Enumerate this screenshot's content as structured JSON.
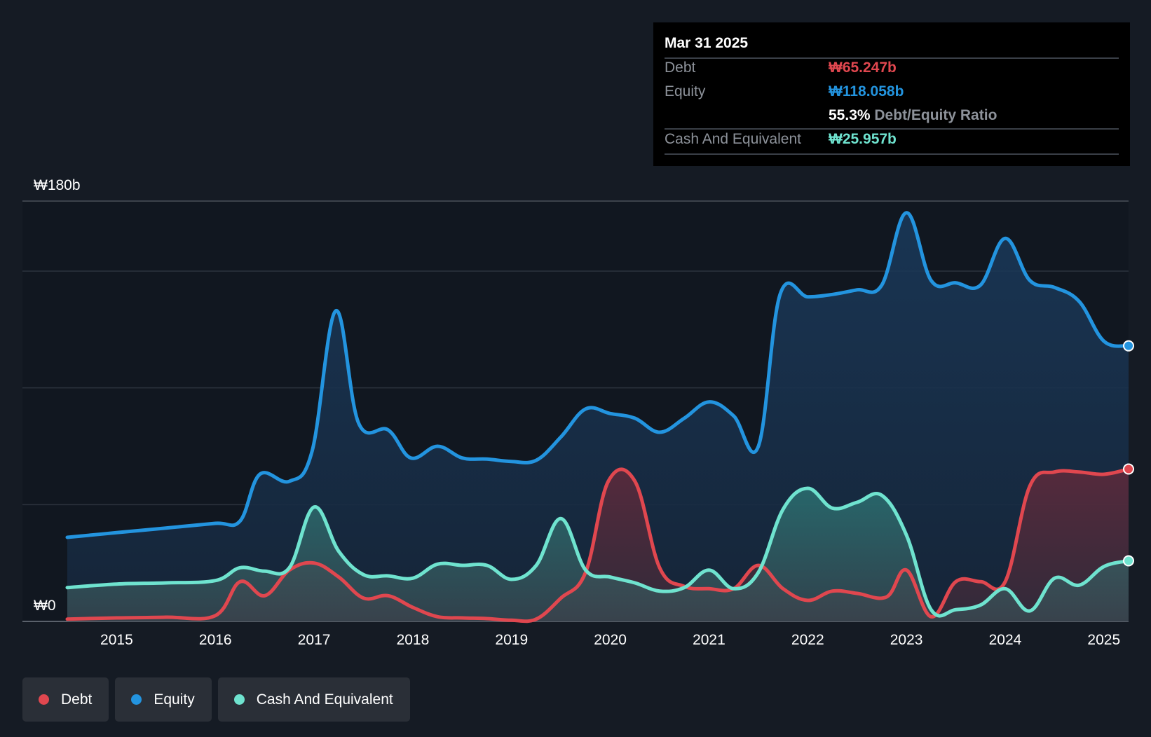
{
  "tooltip": {
    "date": "Mar 31 2025",
    "debt_label": "Debt",
    "debt_value": "₩65.247b",
    "equity_label": "Equity",
    "equity_value": "₩118.058b",
    "ratio_value": "55.3%",
    "ratio_label": "Debt/Equity Ratio",
    "cash_label": "Cash And Equivalent",
    "cash_value": "₩25.957b"
  },
  "legend": {
    "debt": "Debt",
    "equity": "Equity",
    "cash": "Cash And Equivalent"
  },
  "colors": {
    "debt": "#e0474f",
    "equity": "#2394df",
    "cash": "#6fe3cf",
    "background": "#151b24",
    "plot_bg": "#111720"
  },
  "chart_data": {
    "type": "area",
    "title": "",
    "xlabel": "",
    "ylabel": "",
    "y_unit": "₩b",
    "ylim": [
      0,
      180
    ],
    "xlim": [
      2014.5,
      2025.25
    ],
    "y_tick_labels": [
      "₩180b",
      "₩0"
    ],
    "x_ticks": [
      2015,
      2016,
      2017,
      2018,
      2019,
      2020,
      2021,
      2022,
      2023,
      2024,
      2025
    ],
    "x_tick_labels": [
      "2015",
      "2016",
      "2017",
      "2018",
      "2019",
      "2020",
      "2021",
      "2022",
      "2023",
      "2024",
      "2025"
    ],
    "gridlines": [
      0,
      50,
      100,
      150,
      180
    ],
    "series": [
      {
        "name": "Equity",
        "key": "equity",
        "points": [
          [
            2014.5,
            36
          ],
          [
            2015,
            38
          ],
          [
            2015.5,
            40
          ],
          [
            2016,
            42
          ],
          [
            2016.25,
            43
          ],
          [
            2016.45,
            63
          ],
          [
            2016.75,
            60
          ],
          [
            2016.98,
            73
          ],
          [
            2017.22,
            133
          ],
          [
            2017.45,
            85
          ],
          [
            2017.75,
            82
          ],
          [
            2017.98,
            70
          ],
          [
            2018.25,
            75
          ],
          [
            2018.5,
            70
          ],
          [
            2018.75,
            69.5
          ],
          [
            2019,
            68.5
          ],
          [
            2019.25,
            69
          ],
          [
            2019.5,
            79
          ],
          [
            2019.75,
            91
          ],
          [
            2020,
            89
          ],
          [
            2020.25,
            87
          ],
          [
            2020.5,
            81
          ],
          [
            2020.75,
            87
          ],
          [
            2021,
            94
          ],
          [
            2021.25,
            88
          ],
          [
            2021.5,
            75
          ],
          [
            2021.72,
            140
          ],
          [
            2022,
            139
          ],
          [
            2022.25,
            140
          ],
          [
            2022.5,
            142
          ],
          [
            2022.75,
            144
          ],
          [
            2023,
            175
          ],
          [
            2023.25,
            146
          ],
          [
            2023.5,
            145
          ],
          [
            2023.75,
            144
          ],
          [
            2024,
            164
          ],
          [
            2024.25,
            146
          ],
          [
            2024.5,
            143
          ],
          [
            2024.75,
            137
          ],
          [
            2025,
            120
          ],
          [
            2025.25,
            118
          ]
        ]
      },
      {
        "name": "Debt",
        "key": "debt",
        "points": [
          [
            2014.5,
            1
          ],
          [
            2015,
            1.5
          ],
          [
            2015.5,
            1.8
          ],
          [
            2016,
            2.5
          ],
          [
            2016.25,
            17
          ],
          [
            2016.5,
            11
          ],
          [
            2016.75,
            22
          ],
          [
            2017,
            25
          ],
          [
            2017.25,
            19
          ],
          [
            2017.5,
            10
          ],
          [
            2017.75,
            11
          ],
          [
            2018,
            6
          ],
          [
            2018.25,
            2
          ],
          [
            2018.5,
            1.5
          ],
          [
            2018.75,
            1.2
          ],
          [
            2019,
            0.5
          ],
          [
            2019.25,
            1
          ],
          [
            2019.5,
            10
          ],
          [
            2019.75,
            21
          ],
          [
            2019.98,
            60
          ],
          [
            2020.25,
            60
          ],
          [
            2020.5,
            23
          ],
          [
            2020.75,
            15
          ],
          [
            2021,
            14
          ],
          [
            2021.25,
            14
          ],
          [
            2021.5,
            24
          ],
          [
            2021.75,
            14
          ],
          [
            2022,
            9
          ],
          [
            2022.25,
            13
          ],
          [
            2022.5,
            12
          ],
          [
            2022.8,
            10.5
          ],
          [
            2023,
            22
          ],
          [
            2023.25,
            2
          ],
          [
            2023.5,
            17
          ],
          [
            2023.75,
            17
          ],
          [
            2024,
            17
          ],
          [
            2024.25,
            58
          ],
          [
            2024.5,
            64
          ],
          [
            2024.75,
            64
          ],
          [
            2025,
            63
          ],
          [
            2025.25,
            65.247
          ]
        ]
      },
      {
        "name": "Cash And Equivalent",
        "key": "cash",
        "points": [
          [
            2014.5,
            14.5
          ],
          [
            2015,
            16
          ],
          [
            2015.5,
            16.5
          ],
          [
            2016,
            17.5
          ],
          [
            2016.25,
            23
          ],
          [
            2016.5,
            21.5
          ],
          [
            2016.75,
            23
          ],
          [
            2017,
            49
          ],
          [
            2017.25,
            30
          ],
          [
            2017.5,
            20
          ],
          [
            2017.75,
            19.5
          ],
          [
            2018,
            18.5
          ],
          [
            2018.25,
            24.5
          ],
          [
            2018.5,
            24
          ],
          [
            2018.75,
            24
          ],
          [
            2019,
            18
          ],
          [
            2019.25,
            24
          ],
          [
            2019.5,
            44
          ],
          [
            2019.75,
            22
          ],
          [
            2020,
            19
          ],
          [
            2020.25,
            16.5
          ],
          [
            2020.5,
            13
          ],
          [
            2020.75,
            14.5
          ],
          [
            2021,
            22
          ],
          [
            2021.25,
            14
          ],
          [
            2021.5,
            21
          ],
          [
            2021.75,
            48
          ],
          [
            2022,
            57
          ],
          [
            2022.25,
            48.5
          ],
          [
            2022.5,
            51
          ],
          [
            2022.75,
            54
          ],
          [
            2023,
            37
          ],
          [
            2023.25,
            5
          ],
          [
            2023.5,
            5
          ],
          [
            2023.75,
            7
          ],
          [
            2024,
            14
          ],
          [
            2024.25,
            4.5
          ],
          [
            2024.5,
            18.5
          ],
          [
            2024.75,
            15.5
          ],
          [
            2025,
            23.5
          ],
          [
            2025.25,
            25.957
          ]
        ]
      }
    ]
  }
}
